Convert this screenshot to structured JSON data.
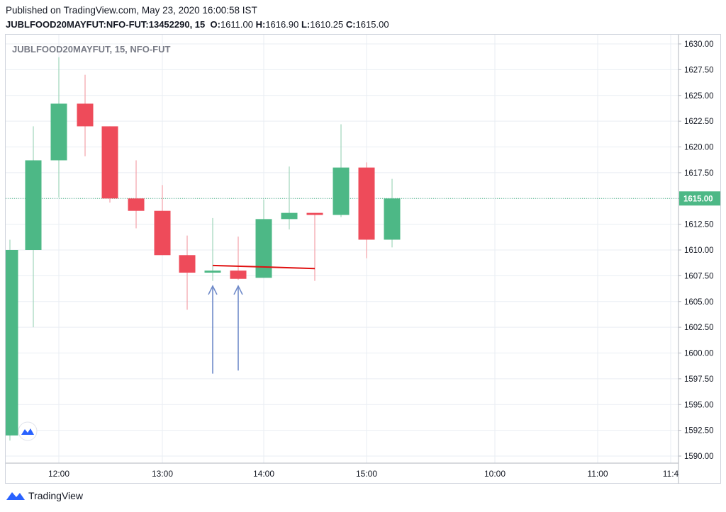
{
  "header": {
    "published": "Published on TradingView.com, May 23, 2020 16:00:58 IST",
    "symbol_line": "JUBLFOOD20MAYFUT:NFO-FUT:13452290, 15",
    "o_label": "O:",
    "o_value": "1611.00",
    "h_label": "H:",
    "h_value": "1616.90",
    "l_label": "L:",
    "l_value": "1610.25",
    "c_label": "C:",
    "c_value": "1615.00"
  },
  "legend": {
    "text": "JUBLFOOD20MAYFUT, 15, NFO-FUT"
  },
  "footer": {
    "brand": "TradingView"
  },
  "colors": {
    "up": "#4db886",
    "down": "#ee4b5a",
    "grid": "#e9eef3",
    "last_price_bg": "#4db886",
    "arrow": "#6f8ac9",
    "trendline": "#e01010"
  },
  "chart_data": {
    "type": "candlestick",
    "title": "JUBLFOOD20MAYFUT, 15, NFO-FUT",
    "ylim": [
      1589.5,
      1630.75
    ],
    "y_ticks": [
      "1630.00",
      "1627.50",
      "1625.00",
      "1622.50",
      "1620.00",
      "1617.50",
      "1615.00",
      "1612.50",
      "1610.00",
      "1607.50",
      "1605.00",
      "1602.50",
      "1600.00",
      "1597.50",
      "1595.00",
      "1592.50",
      "1590.00"
    ],
    "x_ticks": [
      "12:00",
      "13:00",
      "14:00",
      "15:00",
      "10:00",
      "11:00",
      "11:4"
    ],
    "last_price": 1615.0,
    "last_price_label": "1615.00",
    "candles": [
      {
        "time": "11:30",
        "open": 1592.0,
        "high": 1611.0,
        "low": 1591.5,
        "close": 1610.0
      },
      {
        "time": "11:45",
        "open": 1610.0,
        "high": 1622.0,
        "low": 1602.5,
        "close": 1618.7
      },
      {
        "time": "12:00",
        "open": 1618.7,
        "high": 1628.7,
        "low": 1615.1,
        "close": 1624.2
      },
      {
        "time": "12:15",
        "open": 1624.2,
        "high": 1627.0,
        "low": 1619.1,
        "close": 1622.0
      },
      {
        "time": "12:30",
        "open": 1622.0,
        "high": 1622.0,
        "low": 1614.6,
        "close": 1615.0
      },
      {
        "time": "12:45",
        "open": 1615.0,
        "high": 1618.7,
        "low": 1612.1,
        "close": 1613.8
      },
      {
        "time": "13:00",
        "open": 1613.8,
        "high": 1616.3,
        "low": 1609.5,
        "close": 1609.5
      },
      {
        "time": "13:15",
        "open": 1609.5,
        "high": 1611.4,
        "low": 1604.2,
        "close": 1607.8
      },
      {
        "time": "13:30",
        "open": 1607.8,
        "high": 1613.1,
        "low": 1607.0,
        "close": 1608.0
      },
      {
        "time": "13:45",
        "open": 1608.0,
        "high": 1611.3,
        "low": 1607.1,
        "close": 1607.2
      },
      {
        "time": "14:00",
        "open": 1607.3,
        "high": 1614.9,
        "low": 1607.3,
        "close": 1613.0
      },
      {
        "time": "14:15",
        "open": 1613.0,
        "high": 1618.1,
        "low": 1612.0,
        "close": 1613.6
      },
      {
        "time": "14:30",
        "open": 1613.6,
        "high": 1613.6,
        "low": 1607.0,
        "close": 1613.4
      },
      {
        "time": "14:45",
        "open": 1613.4,
        "high": 1622.2,
        "low": 1613.2,
        "close": 1618.0
      },
      {
        "time": "15:00",
        "open": 1618.0,
        "high": 1618.5,
        "low": 1609.2,
        "close": 1611.0
      },
      {
        "time": "15:15",
        "open": 1611.0,
        "high": 1616.9,
        "low": 1610.25,
        "close": 1615.0
      }
    ],
    "annotations": [
      {
        "type": "trendline",
        "from_time": "13:30",
        "from_price": 1608.5,
        "to_time": "14:30",
        "to_price": 1608.2
      },
      {
        "type": "arrow-up",
        "time": "13:30",
        "from_price": 1598.0,
        "to_price": 1606.5
      },
      {
        "type": "arrow-up",
        "time": "13:45",
        "from_price": 1598.3,
        "to_price": 1606.5
      }
    ]
  }
}
